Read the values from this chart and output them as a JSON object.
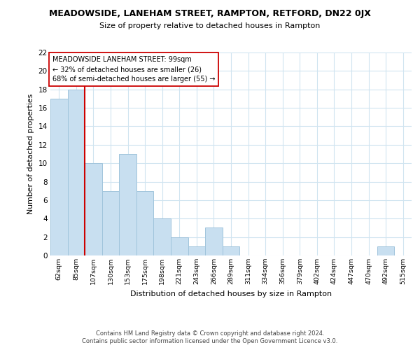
{
  "title": "MEADOWSIDE, LANEHAM STREET, RAMPTON, RETFORD, DN22 0JX",
  "subtitle": "Size of property relative to detached houses in Rampton",
  "xlabel": "Distribution of detached houses by size in Rampton",
  "ylabel": "Number of detached properties",
  "bin_labels": [
    "62sqm",
    "85sqm",
    "107sqm",
    "130sqm",
    "153sqm",
    "175sqm",
    "198sqm",
    "221sqm",
    "243sqm",
    "266sqm",
    "289sqm",
    "311sqm",
    "334sqm",
    "356sqm",
    "379sqm",
    "402sqm",
    "424sqm",
    "447sqm",
    "470sqm",
    "492sqm",
    "515sqm"
  ],
  "bar_heights": [
    17,
    18,
    10,
    7,
    11,
    7,
    4,
    2,
    1,
    3,
    1,
    0,
    0,
    0,
    0,
    0,
    0,
    0,
    0,
    1,
    0
  ],
  "bar_color": "#c8dff0",
  "bar_edge_color": "#a0c4dc",
  "vline_x": 2,
  "vline_color": "#cc0000",
  "annotation_title": "MEADOWSIDE LANEHAM STREET: 99sqm",
  "annotation_line1": "← 32% of detached houses are smaller (26)",
  "annotation_line2": "68% of semi-detached houses are larger (55) →",
  "annotation_box_color": "#ffffff",
  "annotation_box_edge": "#cc0000",
  "ylim": [
    0,
    22
  ],
  "yticks": [
    0,
    2,
    4,
    6,
    8,
    10,
    12,
    14,
    16,
    18,
    20,
    22
  ],
  "footer1": "Contains HM Land Registry data © Crown copyright and database right 2024.",
  "footer2": "Contains public sector information licensed under the Open Government Licence v3.0.",
  "bg_color": "#ffffff",
  "grid_color": "#d0e4f0"
}
